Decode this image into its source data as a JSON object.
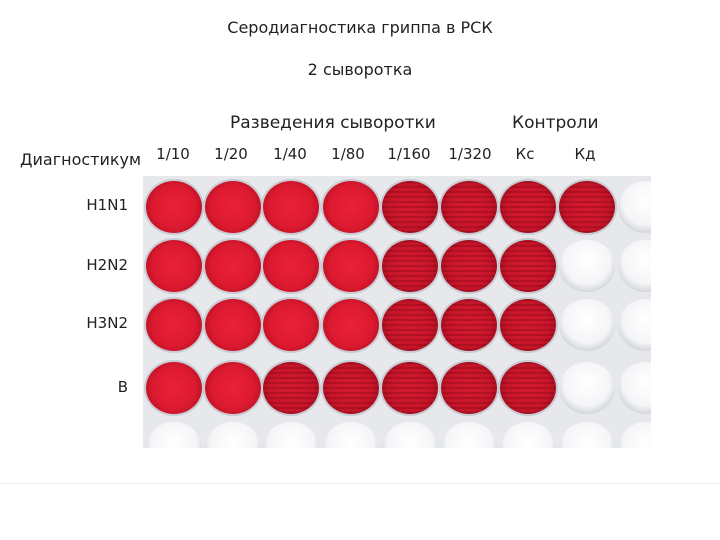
{
  "title": "Серодиагностика гриппа в РСК",
  "subtitle": "2 сыворотка",
  "headers": {
    "dilutions": "Разведения сыворотки",
    "controls": "Контроли",
    "row_axis": "Диагностикум"
  },
  "columns": [
    "1/10",
    "1/20",
    "1/40",
    "1/80",
    "1/160",
    "1/320",
    "Кс",
    "Кд"
  ],
  "rows": [
    {
      "label": "H1N1",
      "wells": [
        "red",
        "red",
        "red",
        "red",
        "striped",
        "striped",
        "striped",
        "striped",
        "empty"
      ]
    },
    {
      "label": "H2N2",
      "wells": [
        "red",
        "red",
        "red",
        "red",
        "striped",
        "striped",
        "striped",
        "empty",
        "empty"
      ]
    },
    {
      "label": "H3N2",
      "wells": [
        "red",
        "red",
        "red",
        "red",
        "striped",
        "striped",
        "striped",
        "empty",
        "empty"
      ]
    },
    {
      "label": "B",
      "wells": [
        "red",
        "red",
        "striped",
        "striped",
        "striped",
        "striped",
        "striped",
        "empty",
        "empty"
      ]
    },
    {
      "label": "",
      "wells": [
        "empty",
        "empty",
        "empty",
        "empty",
        "empty",
        "empty",
        "empty",
        "empty",
        "empty"
      ]
    }
  ],
  "colors": {
    "well_red": "#dc1a30",
    "plate_gray": "#e6e8ec"
  }
}
